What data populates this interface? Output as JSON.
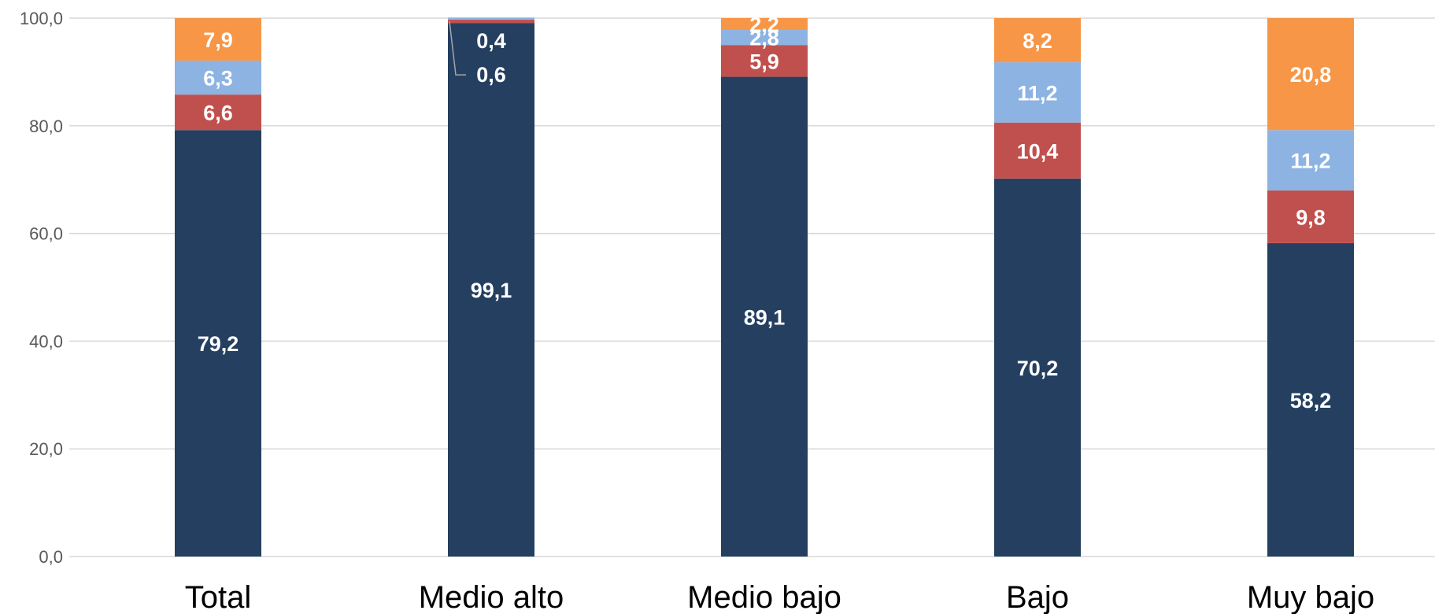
{
  "chart_data": {
    "type": "bar",
    "stacked": true,
    "title": "",
    "xlabel": "",
    "ylabel": "",
    "ylim": [
      0,
      100
    ],
    "yticks": [
      "0,0",
      "20,0",
      "40,0",
      "60,0",
      "80,0",
      "100,0"
    ],
    "ytick_values": [
      0,
      20,
      40,
      60,
      80,
      100
    ],
    "grid": true,
    "legend": "none",
    "categories": [
      "Total",
      "Medio alto",
      "Medio bajo",
      "Bajo",
      "Muy bajo"
    ],
    "series": [
      {
        "color": "#243F60",
        "values": [
          79.2,
          99.1,
          89.1,
          70.2,
          58.2
        ],
        "labels": [
          "79,2",
          "99,1",
          "89,1",
          "70,2",
          "58,2"
        ]
      },
      {
        "color": "#C0504D",
        "values": [
          6.6,
          0.6,
          5.9,
          10.4,
          9.8
        ],
        "labels": [
          "6,6",
          "0,6",
          "5,9",
          "10,4",
          "9,8"
        ]
      },
      {
        "color": "#8DB3E2",
        "values": [
          6.3,
          0.4,
          2.8,
          11.2,
          11.2
        ],
        "labels": [
          "6,3",
          "0,4",
          "2,8",
          "11,2",
          "11,2"
        ]
      },
      {
        "color": "#F79646",
        "values": [
          7.9,
          0.0,
          2.2,
          8.2,
          20.8
        ],
        "labels": [
          "7,9",
          "",
          "2,2",
          "8,2",
          "20,8"
        ]
      }
    ]
  },
  "colors": {
    "grid": "#D9D9D9",
    "axis_text": "#595959",
    "category_text": "#000000",
    "label_text": "#FFFFFF",
    "leader_line": "#A6A6A6"
  }
}
